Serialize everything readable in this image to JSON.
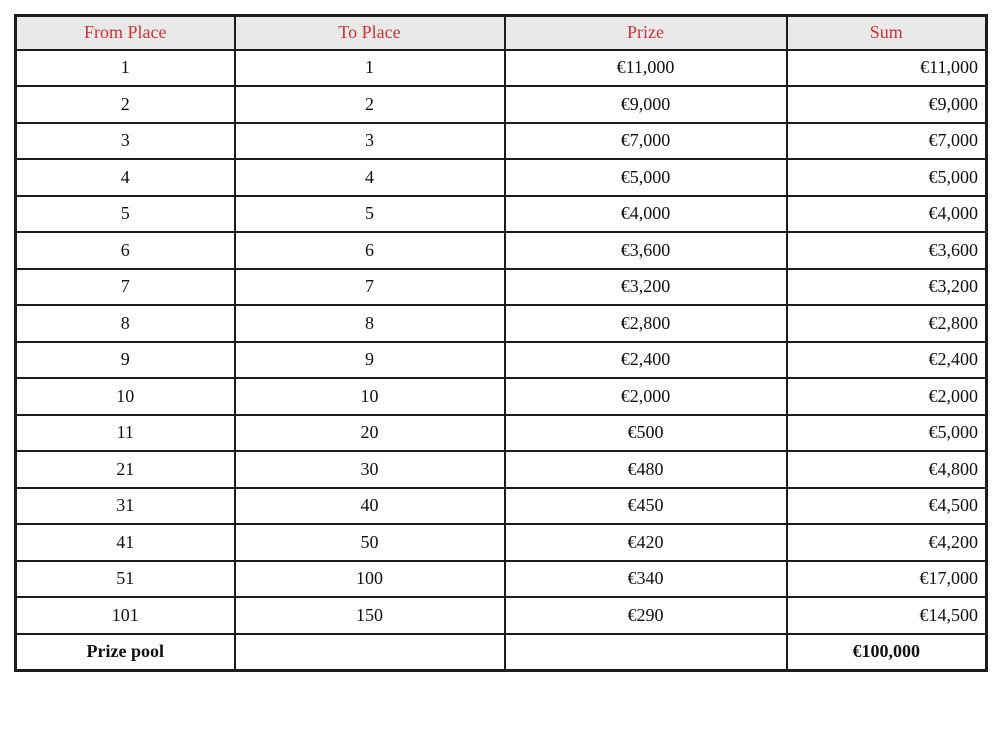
{
  "table": {
    "columns": [
      "From Place",
      "To Place",
      "Prize",
      "Sum"
    ],
    "rows": [
      [
        "1",
        "1",
        "€11,000",
        "€11,000"
      ],
      [
        "2",
        "2",
        "€9,000",
        "€9,000"
      ],
      [
        "3",
        "3",
        "€7,000",
        "€7,000"
      ],
      [
        "4",
        "4",
        "€5,000",
        "€5,000"
      ],
      [
        "5",
        "5",
        "€4,000",
        "€4,000"
      ],
      [
        "6",
        "6",
        "€3,600",
        "€3,600"
      ],
      [
        "7",
        "7",
        "€3,200",
        "€3,200"
      ],
      [
        "8",
        "8",
        "€2,800",
        "€2,800"
      ],
      [
        "9",
        "9",
        "€2,400",
        "€2,400"
      ],
      [
        "10",
        "10",
        "€2,000",
        "€2,000"
      ],
      [
        "11",
        "20",
        "€500",
        "€5,000"
      ],
      [
        "21",
        "30",
        "€480",
        "€4,800"
      ],
      [
        "31",
        "40",
        "€450",
        "€4,500"
      ],
      [
        "41",
        "50",
        "€420",
        "€4,200"
      ],
      [
        "51",
        "100",
        "€340",
        "€17,000"
      ],
      [
        "101",
        "150",
        "€290",
        "€14,500"
      ]
    ],
    "footer": {
      "label": "Prize pool",
      "to_place": "",
      "prize": "",
      "total": "€100,000"
    },
    "colors": {
      "header_bg": "#e9e9e9",
      "header_text": "#cc3333",
      "border": "#1c1c1c",
      "body_text": "#101010"
    }
  }
}
